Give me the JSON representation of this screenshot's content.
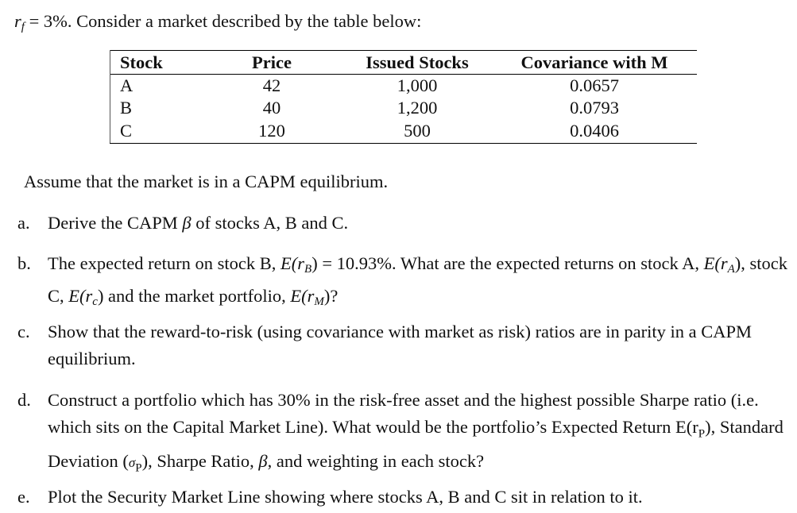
{
  "intro": {
    "rf_symbol": "r",
    "rf_sub": "f",
    "rf_value": " = 3%. Consider a market described by the table below:"
  },
  "table": {
    "headers": [
      "Stock",
      "Price",
      "Issued Stocks",
      "Covariance with M"
    ],
    "rows": [
      [
        "A",
        "42",
        "1,000",
        "0.0657"
      ],
      [
        "B",
        "40",
        "1,200",
        "0.0793"
      ],
      [
        "C",
        "120",
        "500",
        "0.0406"
      ]
    ]
  },
  "assumption": "Assume that the market is in a CAPM equilibrium.",
  "questions": {
    "a": {
      "label": "a.",
      "pre": "Derive the CAPM ",
      "beta": "β",
      "post": " of stocks A, B and C."
    },
    "b": {
      "label": "b.",
      "part1": "The expected return on stock B, ",
      "erb": "E(r",
      "erb_sub": "B",
      "part2": ") = 10.93%.  What are the expected returns on stock A, ",
      "era": "E(r",
      "era_sub": "A",
      "part3": "), stock C, ",
      "erc": "E(r",
      "erc_sub": "c",
      "part4": ") and the market portfolio, ",
      "erm": "E(r",
      "erm_sub": "M",
      "part5": ")?"
    },
    "c": {
      "label": "c.",
      "text": "Show that the reward-to-risk (using covariance with market as risk) ratios are in parity in a CAPM equilibrium."
    },
    "d": {
      "label": "d.",
      "part1": "Construct a portfolio which has 30% in the risk-free asset and the highest possible Sharpe ratio (i.e. which sits on the Capital Market Line). What would be the portfolio’s Expected Return E(r",
      "sub1": "P",
      "part2": "), Standard Deviation (",
      "sigma": "σ",
      "sub2": "P",
      "part3": "), Sharpe Ratio, ",
      "beta": "β",
      "part4": ", and weighting in each stock?"
    },
    "e": {
      "label": "e.",
      "text": "Plot the Security Market Line showing where stocks A, B and C sit in relation to it."
    }
  }
}
